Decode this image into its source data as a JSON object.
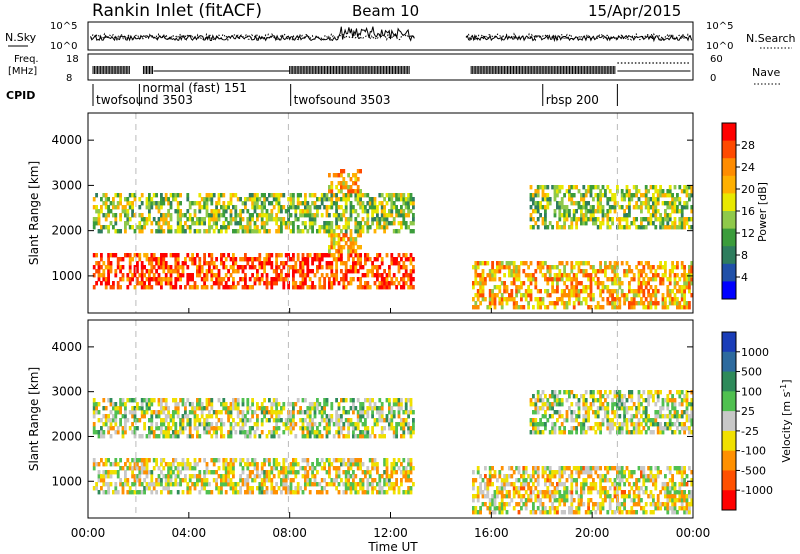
{
  "header": {
    "station": "Rankin Inlet (fitACF)",
    "beam": "Beam 10",
    "date": "15/Apr/2015"
  },
  "top_panels": {
    "nsky_label": "N.Sky",
    "nsky_ticks": [
      "10^5",
      "10^0"
    ],
    "nsearch_label": "N.Search",
    "nsearch_ticks": [
      "10^5",
      "10^0"
    ],
    "freq_label_line1": "Freq.",
    "freq_label_line2": "[MHz]",
    "freq_ticks": [
      "18",
      "8"
    ],
    "nave_label": "Nave",
    "nave_ticks": [
      "60",
      "0"
    ],
    "cpid_label": "CPID"
  },
  "cpid_segments": [
    {
      "label": "twofsound 3503",
      "start_hour": 0
    },
    {
      "label": "normal (fast) 151",
      "start_hour": 2
    },
    {
      "label": "twofsound 3503",
      "start_hour": 8
    },
    {
      "label": "rbsp 200",
      "start_hour": 18
    }
  ],
  "power_scale": {
    "title": "Power [dB]",
    "ticks": [
      "28",
      "24",
      "20",
      "16",
      "12",
      "8",
      "4"
    ],
    "colors": [
      "#ff0000",
      "#ff4a00",
      "#ff8c00",
      "#ffb000",
      "#e8e800",
      "#8fc94a",
      "#3b9c3b",
      "#2e7d5e",
      "#2050a8",
      "#0000ff"
    ]
  },
  "velocity_scale": {
    "title": "Velocity [m s",
    "title_sup": "-1",
    "title_end": "]",
    "ticks": [
      "1000",
      "500",
      "100",
      "25",
      "-25",
      "-100",
      "-500",
      "-1000"
    ],
    "colors": [
      "#1a3db8",
      "#2d6a9e",
      "#2e8a5a",
      "#50c050",
      "#c8c8c8",
      "#f0e000",
      "#ff9000",
      "#ff5000",
      "#ff0000"
    ]
  },
  "chart_data": {
    "type": "heatmap",
    "xlabel": "Time UT",
    "ylabel": "Slant Range [km]",
    "x_ticks": [
      "00:00",
      "04:00",
      "08:00",
      "12:00",
      "16:00",
      "20:00",
      "00:00"
    ],
    "x_range_hours": [
      0,
      24
    ],
    "y_ticks": [
      1000,
      2000,
      3000,
      4000
    ],
    "ylim": [
      180,
      4600
    ],
    "data_gap_hours": [
      13,
      15
    ],
    "dashed_time_markers_hours": [
      1.9,
      7.95,
      21.0
    ],
    "panels": [
      {
        "name": "Power",
        "units": "dB",
        "clim": [
          0,
          30
        ],
        "echo_regions": [
          {
            "t_start": 0.1,
            "t_end": 12.9,
            "range_start": 700,
            "range_end": 1500,
            "level": 26
          },
          {
            "t_start": 0.1,
            "t_end": 12.9,
            "range_start": 1900,
            "range_end": 2800,
            "level": 14
          },
          {
            "t_start": 9.5,
            "t_end": 10.8,
            "range_start": 1000,
            "range_end": 3300,
            "level": 20
          },
          {
            "t_start": 15.2,
            "t_end": 23.9,
            "range_start": 200,
            "range_end": 1300,
            "level": 20
          },
          {
            "t_start": 17.5,
            "t_end": 23.9,
            "range_start": 2000,
            "range_end": 3000,
            "level": 14
          }
        ]
      },
      {
        "name": "Velocity",
        "units": "m s-1",
        "clim": [
          -1000,
          1000
        ],
        "echo_regions": [
          {
            "t_start": 0.1,
            "t_end": 12.9,
            "range_start": 700,
            "range_end": 1500,
            "level": -100
          },
          {
            "t_start": 0.1,
            "t_end": 12.9,
            "range_start": 1900,
            "range_end": 2800,
            "level": 0
          },
          {
            "t_start": 15.2,
            "t_end": 23.9,
            "range_start": 200,
            "range_end": 1300,
            "level": -150
          },
          {
            "t_start": 17.5,
            "t_end": 23.9,
            "range_start": 2000,
            "range_end": 3000,
            "level": 0
          }
        ]
      }
    ]
  }
}
